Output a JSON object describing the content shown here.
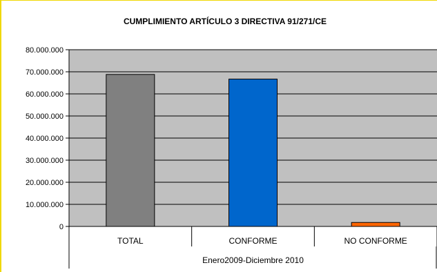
{
  "chart_data": {
    "type": "bar",
    "title": "CUMPLIMIENTO ARTÍCULO 3 DIRECTIVA 91/271/CE",
    "categories": [
      "TOTAL",
      "CONFORME",
      "NO CONFORME"
    ],
    "values": [
      68800000,
      66700000,
      1800000
    ],
    "colors": [
      "#808080",
      "#0066cc",
      "#ff6600"
    ],
    "plot_background": "#c0c0c0",
    "ylim": [
      0,
      80000000
    ],
    "ytick_step": 10000000,
    "yticks": [
      "0",
      "10.000.000",
      "20.000.000",
      "30.000.000",
      "40.000.000",
      "50.000.000",
      "60.000.000",
      "70.000.000",
      "80.000.000"
    ],
    "x_group_label": "Enero2009-Diciembre 2010",
    "grid": true,
    "legend": "none"
  }
}
